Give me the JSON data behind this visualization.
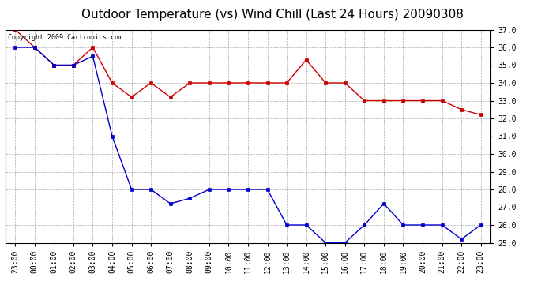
{
  "title": "Outdoor Temperature (vs) Wind Chill (Last 24 Hours) 20090308",
  "copyright": "Copyright 2009 Cartronics.com",
  "x_labels": [
    "23:00",
    "00:00",
    "01:00",
    "02:00",
    "03:00",
    "04:00",
    "05:00",
    "06:00",
    "07:00",
    "08:00",
    "09:00",
    "10:00",
    "11:00",
    "12:00",
    "13:00",
    "14:00",
    "15:00",
    "16:00",
    "17:00",
    "18:00",
    "19:00",
    "20:00",
    "21:00",
    "22:00",
    "23:00"
  ],
  "temp_data": [
    37.0,
    36.0,
    35.0,
    35.0,
    36.0,
    34.0,
    33.2,
    34.0,
    33.2,
    34.0,
    34.0,
    34.0,
    34.0,
    34.0,
    34.0,
    35.3,
    34.0,
    34.0,
    33.0,
    33.0,
    33.0,
    33.0,
    33.0,
    32.5,
    32.2
  ],
  "chill_data": [
    36.0,
    36.0,
    35.0,
    35.0,
    35.5,
    31.0,
    28.0,
    28.0,
    27.2,
    27.5,
    28.0,
    28.0,
    28.0,
    28.0,
    26.0,
    26.0,
    25.0,
    25.0,
    26.0,
    27.2,
    26.0,
    26.0,
    26.0,
    25.2,
    26.0
  ],
  "temp_color": "#cc0000",
  "chill_color": "#0000cc",
  "ylim": [
    25.0,
    37.0
  ],
  "yticks": [
    25.0,
    26.0,
    27.0,
    28.0,
    29.0,
    30.0,
    31.0,
    32.0,
    33.0,
    34.0,
    35.0,
    36.0,
    37.0
  ],
  "background_color": "#ffffff",
  "grid_color": "#aaaaaa",
  "title_fontsize": 11,
  "tick_fontsize": 7,
  "copyright_fontsize": 6
}
